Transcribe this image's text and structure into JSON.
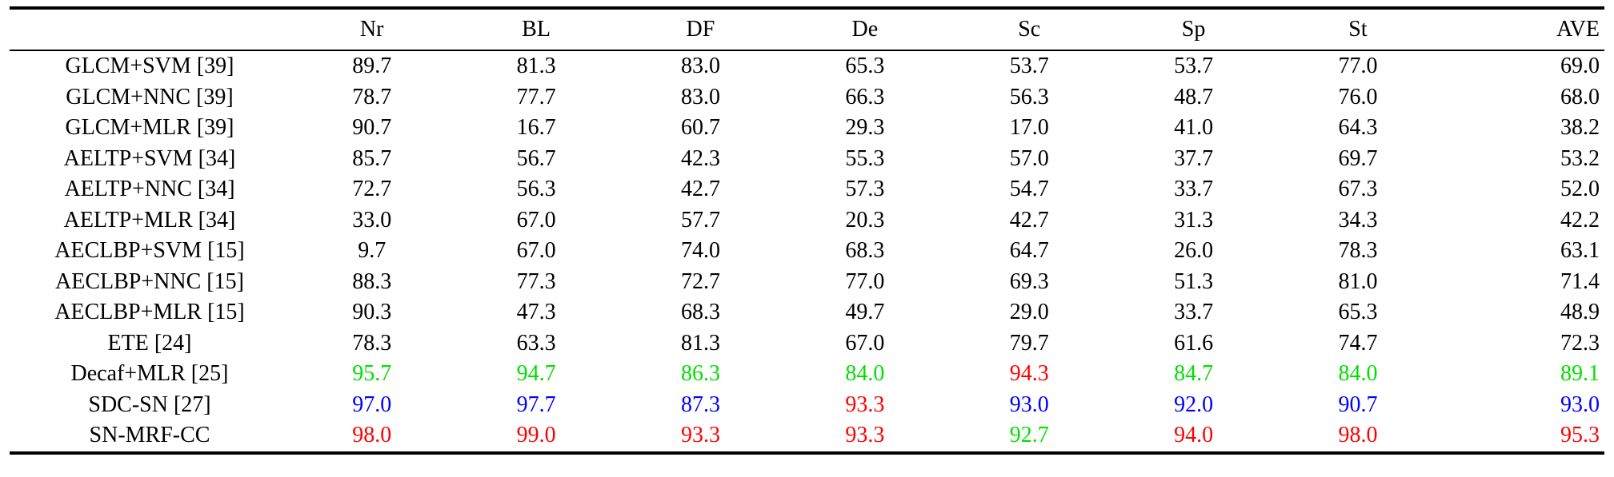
{
  "colors": {
    "default": "#000000",
    "best": "#ff0000",
    "second": "#0000ff",
    "third": "#00e000"
  },
  "table": {
    "headers": [
      "",
      "Nr",
      "BL",
      "DF",
      "De",
      "Sc",
      "Sp",
      "St",
      "AVE"
    ],
    "rows": [
      {
        "method": "GLCM+SVM [39]",
        "values": [
          "89.7",
          "81.3",
          "83.0",
          "65.3",
          "53.7",
          "53.7",
          "77.0",
          "69.0"
        ],
        "ranks": [
          "",
          "",
          "",
          "",
          "",
          "",
          "",
          ""
        ]
      },
      {
        "method": "GLCM+NNC [39]",
        "values": [
          "78.7",
          "77.7",
          "83.0",
          "66.3",
          "56.3",
          "48.7",
          "76.0",
          "68.0"
        ],
        "ranks": [
          "",
          "",
          "",
          "",
          "",
          "",
          "",
          ""
        ]
      },
      {
        "method": "GLCM+MLR [39]",
        "values": [
          "90.7",
          "16.7",
          "60.7",
          "29.3",
          "17.0",
          "41.0",
          "64.3",
          "38.2"
        ],
        "ranks": [
          "",
          "",
          "",
          "",
          "",
          "",
          "",
          ""
        ]
      },
      {
        "method": "AELTP+SVM [34]",
        "values": [
          "85.7",
          "56.7",
          "42.3",
          "55.3",
          "57.0",
          "37.7",
          "69.7",
          "53.2"
        ],
        "ranks": [
          "",
          "",
          "",
          "",
          "",
          "",
          "",
          ""
        ]
      },
      {
        "method": "AELTP+NNC [34]",
        "values": [
          "72.7",
          "56.3",
          "42.7",
          "57.3",
          "54.7",
          "33.7",
          "67.3",
          "52.0"
        ],
        "ranks": [
          "",
          "",
          "",
          "",
          "",
          "",
          "",
          ""
        ]
      },
      {
        "method": "AELTP+MLR [34]",
        "values": [
          "33.0",
          "67.0",
          "57.7",
          "20.3",
          "42.7",
          "31.3",
          "34.3",
          "42.2"
        ],
        "ranks": [
          "",
          "",
          "",
          "",
          "",
          "",
          "",
          ""
        ]
      },
      {
        "method": "AECLBP+SVM [15]",
        "values": [
          "9.7",
          "67.0",
          "74.0",
          "68.3",
          "64.7",
          "26.0",
          "78.3",
          "63.1"
        ],
        "ranks": [
          "",
          "",
          "",
          "",
          "",
          "",
          "",
          ""
        ]
      },
      {
        "method": "AECLBP+NNC [15]",
        "values": [
          "88.3",
          "77.3",
          "72.7",
          "77.0",
          "69.3",
          "51.3",
          "81.0",
          "71.4"
        ],
        "ranks": [
          "",
          "",
          "",
          "",
          "",
          "",
          "",
          ""
        ]
      },
      {
        "method": "AECLBP+MLR [15]",
        "values": [
          "90.3",
          "47.3",
          "68.3",
          "49.7",
          "29.0",
          "33.7",
          "65.3",
          "48.9"
        ],
        "ranks": [
          "",
          "",
          "",
          "",
          "",
          "",
          "",
          ""
        ]
      },
      {
        "method": "ETE [24]",
        "values": [
          "78.3",
          "63.3",
          "81.3",
          "67.0",
          "79.7",
          "61.6",
          "74.7",
          "72.3"
        ],
        "ranks": [
          "",
          "",
          "",
          "",
          "",
          "",
          "",
          ""
        ]
      },
      {
        "method": "Decaf+MLR [25]",
        "values": [
          "95.7",
          "94.7",
          "86.3",
          "84.0",
          "94.3",
          "84.7",
          "84.0",
          "89.1"
        ],
        "ranks": [
          "third",
          "third",
          "third",
          "third",
          "best",
          "third",
          "third",
          "third"
        ]
      },
      {
        "method": "SDC-SN [27]",
        "values": [
          "97.0",
          "97.7",
          "87.3",
          "93.3",
          "93.0",
          "92.0",
          "90.7",
          "93.0"
        ],
        "ranks": [
          "second",
          "second",
          "second",
          "best",
          "second",
          "second",
          "second",
          "second"
        ]
      },
      {
        "method": "SN-MRF-CC",
        "values": [
          "98.0",
          "99.0",
          "93.3",
          "93.3",
          "92.7",
          "94.0",
          "98.0",
          "95.3"
        ],
        "ranks": [
          "best",
          "best",
          "best",
          "best",
          "third",
          "best",
          "best",
          "best"
        ]
      }
    ]
  }
}
